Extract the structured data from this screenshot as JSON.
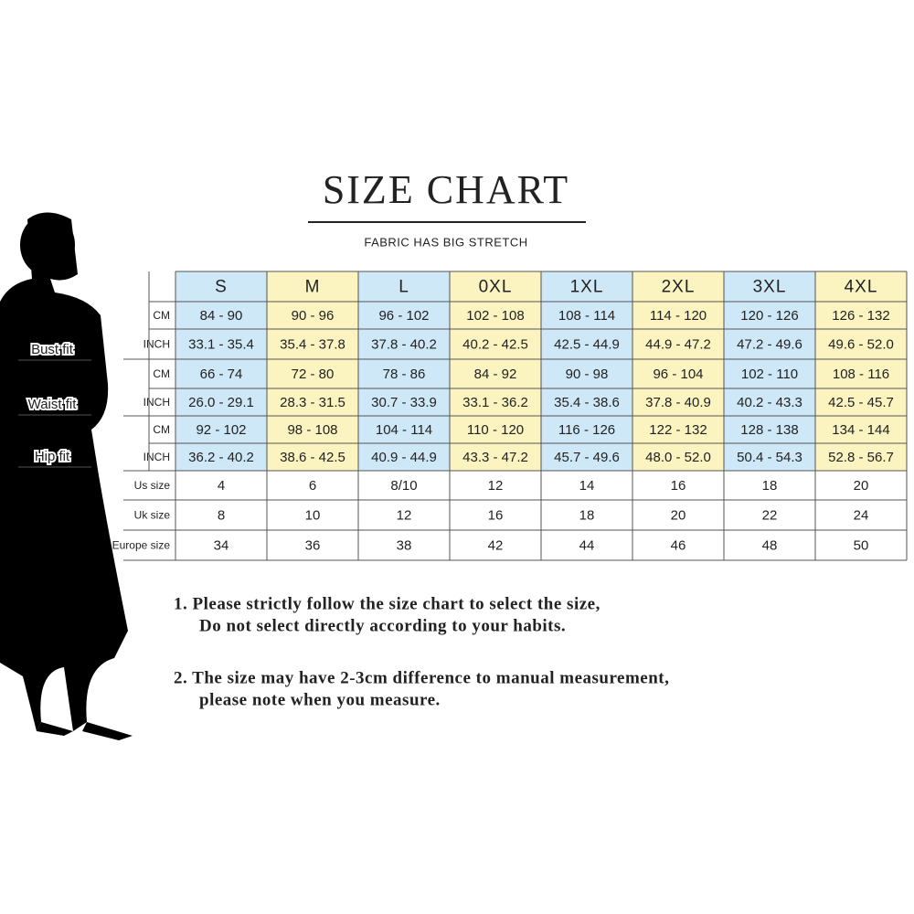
{
  "header": {
    "title": "SIZE CHART",
    "subtitle": "FABRIC HAS BIG STRETCH"
  },
  "side_labels": [
    "Bust fit",
    "Waist fit",
    "Hip fit"
  ],
  "table": {
    "sizes": [
      "S",
      "M",
      "L",
      "0XL",
      "1XL",
      "2XL",
      "3XL",
      "4XL"
    ],
    "rows": [
      {
        "label": "CM",
        "cells": [
          "84 - 90",
          "90 - 96",
          "96 - 102",
          "102 - 108",
          "108 - 114",
          "114 - 120",
          "120 - 126",
          "126 - 132"
        ]
      },
      {
        "label": "INCH",
        "cells": [
          "33.1 - 35.4",
          "35.4 - 37.8",
          "37.8 - 40.2",
          "40.2 - 42.5",
          "42.5 - 44.9",
          "44.9 - 47.2",
          "47.2 - 49.6",
          "49.6 - 52.0"
        ]
      },
      {
        "label": "CM",
        "cells": [
          "66 - 74",
          "72 - 80",
          "78 - 86",
          "84 - 92",
          "90 - 98",
          "96 - 104",
          "102 - 110",
          "108 - 116"
        ]
      },
      {
        "label": "INCH",
        "cells": [
          "26.0 - 29.1",
          "28.3 - 31.5",
          "30.7 - 33.9",
          "33.1 - 36.2",
          "35.4 - 38.6",
          "37.8 - 40.9",
          "40.2 - 43.3",
          "42.5 - 45.7"
        ]
      },
      {
        "label": "CM",
        "cells": [
          "92 - 102",
          "98 - 108",
          "104 - 114",
          "110 - 120",
          "116 - 126",
          "122 - 132",
          "128 - 138",
          "134 - 144"
        ]
      },
      {
        "label": "INCH",
        "cells": [
          "36.2 - 40.2",
          "38.6 - 42.5",
          "40.9 - 44.9",
          "43.3 - 47.2",
          "45.7 - 49.6",
          "48.0 - 52.0",
          "50.4 - 54.3",
          "52.8 - 56.7"
        ]
      },
      {
        "label": "Us size",
        "cells": [
          "4",
          "6",
          "8/10",
          "12",
          "14",
          "16",
          "18",
          "20"
        ]
      },
      {
        "label": "Uk size",
        "cells": [
          "8",
          "10",
          "12",
          "16",
          "18",
          "20",
          "22",
          "24"
        ]
      },
      {
        "label": "Europe size",
        "cells": [
          "34",
          "36",
          "38",
          "42",
          "44",
          "46",
          "48",
          "50"
        ]
      }
    ]
  },
  "notes": [
    [
      "1.  Please strictly follow the size chart to select the size,",
      "Do not select directly according to your habits."
    ],
    [
      "2.  The size may have 2-3cm difference  to manual measurement,",
      "please note when you measure."
    ]
  ]
}
